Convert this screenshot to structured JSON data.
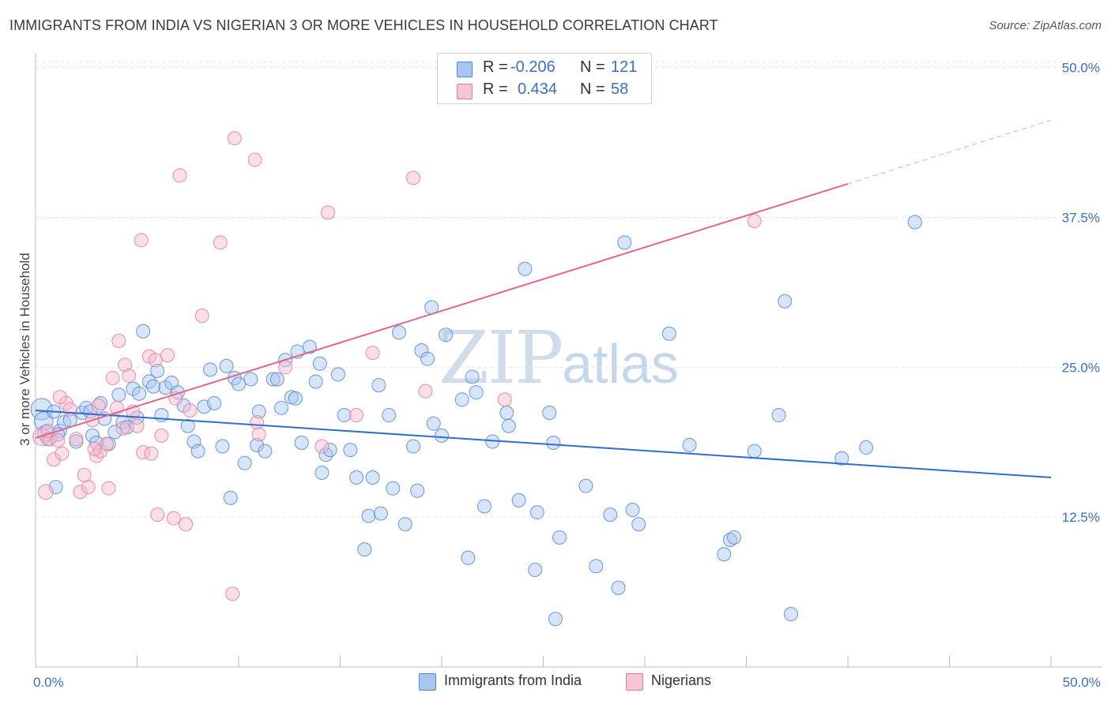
{
  "title": "IMMIGRANTS FROM INDIA VS NIGERIAN 3 OR MORE VEHICLES IN HOUSEHOLD CORRELATION CHART",
  "source": "Source: ZipAtlas.com",
  "watermark": {
    "zip": "ZIP",
    "atlas": "atlas"
  },
  "colors": {
    "blue_fill": "#a9c6ef",
    "blue_stroke": "#4f86d4",
    "blue_line": "#2f6fc8",
    "pink_fill": "#f6b9cc",
    "pink_stroke": "#e8799c",
    "pink_line": "#e0668f",
    "axis_text": "#3a6fc2",
    "grid": "#e6e6e6"
  },
  "legend_top": {
    "r_label": "R =",
    "n_label": "N =",
    "rows": [
      {
        "series": "india",
        "r": "-0.206",
        "n": "121"
      },
      {
        "series": "nigerian",
        "r": "0.434",
        "n": "58"
      }
    ]
  },
  "legend_bottom": [
    {
      "series": "india",
      "label": "Immigrants from India"
    },
    {
      "series": "nigerian",
      "label": "Nigerians"
    }
  ],
  "chart_data": {
    "type": "scatter",
    "title": "IMMIGRANTS FROM INDIA VS NIGERIAN 3 OR MORE VEHICLES IN HOUSEHOLD CORRELATION CHART",
    "xlabel": "",
    "ylabel": "3 or more Vehicles in Household",
    "xlim": [
      0,
      50
    ],
    "ylim": [
      0,
      50.5
    ],
    "x_tick_labels": [
      {
        "value": 0,
        "label": "0.0%"
      },
      {
        "value": 50,
        "label": "50.0%"
      }
    ],
    "x_minor_ticks": [
      5,
      10,
      15,
      20,
      25,
      30,
      35,
      40,
      45,
      50
    ],
    "y_ticks": [
      {
        "value": 12.5,
        "label": "12.5%"
      },
      {
        "value": 25.0,
        "label": "25.0%"
      },
      {
        "value": 37.5,
        "label": "37.5%"
      },
      {
        "value": 50.0,
        "label": "50.0%"
      }
    ],
    "grid": true,
    "series": [
      {
        "name": "Immigrants from India",
        "key": "india",
        "trend": {
          "x": [
            0,
            50
          ],
          "y": [
            21.4,
            15.8
          ]
        },
        "points": [
          [
            0.3,
            21.5,
            1.6
          ],
          [
            0.4,
            20.5,
            1.4
          ],
          [
            0.5,
            19.5,
            1.2
          ],
          [
            0.6,
            19.0,
            1.0
          ],
          [
            0.9,
            21.3,
            1.0
          ],
          [
            1.0,
            15.0,
            1.0
          ],
          [
            1.2,
            19.7,
            1.0
          ],
          [
            1.4,
            20.4,
            1.0
          ],
          [
            1.7,
            20.6,
            1.0
          ],
          [
            2.0,
            18.8,
            1.0
          ],
          [
            2.3,
            21.2,
            1.0
          ],
          [
            2.5,
            21.6,
            1.0
          ],
          [
            2.8,
            19.3,
            1.0
          ],
          [
            3.0,
            18.7,
            1.0
          ],
          [
            3.2,
            22.0,
            1.0
          ],
          [
            3.4,
            20.7,
            1.0
          ],
          [
            3.6,
            18.6,
            1.0
          ],
          [
            3.9,
            19.6,
            1.0
          ],
          [
            4.1,
            22.7,
            1.0
          ],
          [
            4.3,
            20.4,
            1.0
          ],
          [
            4.5,
            20.0,
            1.0
          ],
          [
            4.8,
            23.2,
            1.0
          ],
          [
            5.0,
            20.8,
            1.0
          ],
          [
            5.1,
            22.8,
            1.0
          ],
          [
            5.3,
            28.0,
            1.0
          ],
          [
            5.6,
            23.8,
            1.0
          ],
          [
            5.8,
            23.4,
            1.0
          ],
          [
            6.0,
            24.7,
            1.0
          ],
          [
            6.2,
            21.0,
            1.0
          ],
          [
            6.4,
            23.3,
            1.0
          ],
          [
            6.7,
            23.7,
            1.0
          ],
          [
            7.0,
            22.9,
            1.0
          ],
          [
            7.3,
            21.8,
            1.0
          ],
          [
            7.5,
            20.1,
            1.0
          ],
          [
            7.8,
            18.8,
            1.0
          ],
          [
            8.0,
            18.0,
            1.0
          ],
          [
            8.3,
            21.7,
            1.0
          ],
          [
            8.6,
            24.8,
            1.0
          ],
          [
            8.8,
            22.0,
            1.0
          ],
          [
            9.2,
            18.4,
            1.0
          ],
          [
            9.4,
            25.1,
            1.0
          ],
          [
            9.6,
            14.1,
            1.0
          ],
          [
            9.8,
            24.1,
            1.0
          ],
          [
            10.0,
            23.6,
            1.0
          ],
          [
            10.3,
            17.0,
            1.0
          ],
          [
            10.6,
            24.0,
            1.0
          ],
          [
            10.9,
            18.5,
            1.0
          ],
          [
            11.0,
            21.3,
            1.0
          ],
          [
            11.3,
            18.0,
            1.0
          ],
          [
            11.7,
            24.0,
            1.0
          ],
          [
            11.9,
            24.0,
            1.0
          ],
          [
            12.1,
            21.6,
            1.0
          ],
          [
            12.3,
            25.6,
            1.0
          ],
          [
            12.6,
            22.5,
            1.0
          ],
          [
            12.8,
            22.4,
            1.0
          ],
          [
            12.9,
            26.3,
            1.0
          ],
          [
            13.1,
            18.7,
            1.0
          ],
          [
            13.5,
            26.7,
            1.0
          ],
          [
            13.8,
            23.8,
            1.0
          ],
          [
            14.0,
            25.3,
            1.0
          ],
          [
            14.1,
            16.2,
            1.0
          ],
          [
            14.3,
            17.7,
            1.0
          ],
          [
            14.5,
            18.1,
            1.0
          ],
          [
            14.9,
            24.4,
            1.0
          ],
          [
            15.2,
            21.0,
            1.0
          ],
          [
            15.5,
            18.1,
            1.0
          ],
          [
            15.8,
            15.8,
            1.0
          ],
          [
            16.2,
            9.8,
            1.0
          ],
          [
            16.4,
            12.6,
            1.0
          ],
          [
            16.6,
            15.8,
            1.0
          ],
          [
            16.9,
            23.5,
            1.0
          ],
          [
            17.0,
            12.8,
            1.0
          ],
          [
            17.4,
            21.0,
            1.0
          ],
          [
            17.6,
            14.9,
            1.0
          ],
          [
            17.9,
            27.9,
            1.0
          ],
          [
            18.2,
            11.9,
            1.0
          ],
          [
            18.6,
            18.4,
            1.0
          ],
          [
            18.8,
            14.7,
            1.0
          ],
          [
            19.0,
            26.4,
            1.0
          ],
          [
            19.3,
            25.7,
            1.0
          ],
          [
            19.5,
            30.0,
            1.0
          ],
          [
            19.6,
            20.3,
            1.0
          ],
          [
            20.0,
            19.3,
            1.0
          ],
          [
            20.2,
            27.7,
            1.0
          ],
          [
            21.0,
            22.3,
            1.0
          ],
          [
            21.3,
            9.1,
            1.0
          ],
          [
            21.5,
            24.2,
            1.0
          ],
          [
            21.7,
            22.9,
            1.0
          ],
          [
            22.1,
            13.4,
            1.0
          ],
          [
            22.5,
            18.8,
            1.0
          ],
          [
            23.2,
            21.2,
            1.0
          ],
          [
            23.3,
            20.1,
            1.0
          ],
          [
            23.8,
            13.9,
            1.0
          ],
          [
            24.1,
            33.2,
            1.0
          ],
          [
            24.6,
            8.1,
            1.0
          ],
          [
            24.7,
            12.9,
            1.0
          ],
          [
            25.3,
            21.2,
            1.0
          ],
          [
            25.5,
            18.7,
            1.0
          ],
          [
            25.6,
            4.0,
            1.0
          ],
          [
            25.8,
            10.8,
            1.0
          ],
          [
            27.1,
            15.1,
            1.0
          ],
          [
            27.6,
            8.4,
            1.0
          ],
          [
            28.3,
            12.7,
            1.0
          ],
          [
            28.7,
            6.6,
            1.0
          ],
          [
            29.0,
            35.4,
            1.0
          ],
          [
            29.4,
            13.1,
            1.0
          ],
          [
            29.7,
            11.9,
            1.0
          ],
          [
            31.2,
            27.8,
            1.0
          ],
          [
            32.2,
            18.5,
            1.0
          ],
          [
            33.9,
            9.4,
            1.0
          ],
          [
            34.2,
            10.6,
            1.0
          ],
          [
            34.4,
            10.8,
            1.0
          ],
          [
            35.4,
            18.0,
            1.0
          ],
          [
            36.6,
            21.0,
            1.0
          ],
          [
            36.9,
            30.5,
            1.0
          ],
          [
            37.2,
            4.4,
            1.0
          ],
          [
            39.7,
            17.4,
            1.0
          ],
          [
            40.9,
            18.3,
            1.0
          ],
          [
            43.3,
            37.1,
            1.0
          ],
          [
            1.1,
            19.4,
            1.0
          ],
          [
            2.7,
            21.3,
            1.0
          ]
        ]
      },
      {
        "name": "Nigerians",
        "key": "nigerian",
        "trend": {
          "x": [
            0,
            40
          ],
          "y": [
            19.1,
            40.3
          ]
        },
        "trend_dashed": {
          "x": [
            40,
            50
          ],
          "y": [
            40.3,
            45.6
          ]
        },
        "points": [
          [
            0.3,
            19.2,
            1.3
          ],
          [
            0.5,
            14.6,
            1.1
          ],
          [
            0.7,
            19.0,
            1.0
          ],
          [
            0.9,
            17.3,
            1.0
          ],
          [
            1.1,
            18.9,
            1.0
          ],
          [
            1.3,
            17.8,
            1.0
          ],
          [
            1.5,
            22.0,
            1.0
          ],
          [
            1.7,
            21.5,
            1.0
          ],
          [
            2.0,
            19.0,
            1.0
          ],
          [
            2.2,
            14.6,
            1.0
          ],
          [
            2.4,
            16.0,
            1.0
          ],
          [
            2.6,
            15.0,
            1.0
          ],
          [
            2.8,
            20.6,
            1.0
          ],
          [
            3.0,
            17.6,
            1.0
          ],
          [
            3.2,
            18.0,
            1.0
          ],
          [
            3.5,
            18.6,
            1.0
          ],
          [
            3.6,
            14.9,
            1.0
          ],
          [
            3.8,
            24.1,
            1.0
          ],
          [
            4.0,
            21.6,
            1.0
          ],
          [
            4.1,
            27.2,
            1.0
          ],
          [
            4.4,
            25.2,
            1.0
          ],
          [
            4.6,
            24.3,
            1.0
          ],
          [
            4.8,
            21.3,
            1.0
          ],
          [
            5.0,
            20.1,
            1.0
          ],
          [
            5.2,
            35.6,
            1.0
          ],
          [
            5.3,
            17.9,
            1.0
          ],
          [
            5.6,
            25.9,
            1.0
          ],
          [
            5.9,
            25.6,
            1.0
          ],
          [
            6.0,
            12.7,
            1.0
          ],
          [
            6.2,
            19.3,
            1.0
          ],
          [
            6.5,
            26.0,
            1.0
          ],
          [
            6.8,
            12.4,
            1.0
          ],
          [
            7.1,
            41.0,
            1.0
          ],
          [
            7.4,
            11.9,
            1.0
          ],
          [
            7.6,
            21.4,
            1.0
          ],
          [
            8.2,
            29.3,
            1.0
          ],
          [
            9.1,
            35.4,
            1.0
          ],
          [
            9.7,
            6.1,
            1.0
          ],
          [
            9.8,
            44.1,
            1.0
          ],
          [
            10.8,
            42.3,
            1.0
          ],
          [
            10.9,
            20.4,
            1.0
          ],
          [
            11.0,
            19.4,
            1.0
          ],
          [
            12.3,
            25.0,
            1.0
          ],
          [
            14.1,
            18.4,
            1.0
          ],
          [
            14.4,
            37.9,
            1.0
          ],
          [
            15.8,
            21.0,
            1.0
          ],
          [
            16.6,
            26.2,
            1.0
          ],
          [
            18.6,
            40.8,
            1.0
          ],
          [
            19.2,
            23.0,
            1.0
          ],
          [
            23.1,
            22.3,
            1.0
          ],
          [
            35.4,
            37.2,
            1.0
          ],
          [
            1.2,
            22.5,
            1.0
          ],
          [
            2.9,
            18.2,
            1.0
          ],
          [
            4.3,
            19.9,
            1.0
          ],
          [
            5.7,
            17.8,
            1.0
          ],
          [
            6.9,
            22.4,
            1.0
          ],
          [
            0.6,
            19.7,
            1.0
          ],
          [
            3.1,
            21.8,
            1.0
          ]
        ]
      }
    ]
  }
}
